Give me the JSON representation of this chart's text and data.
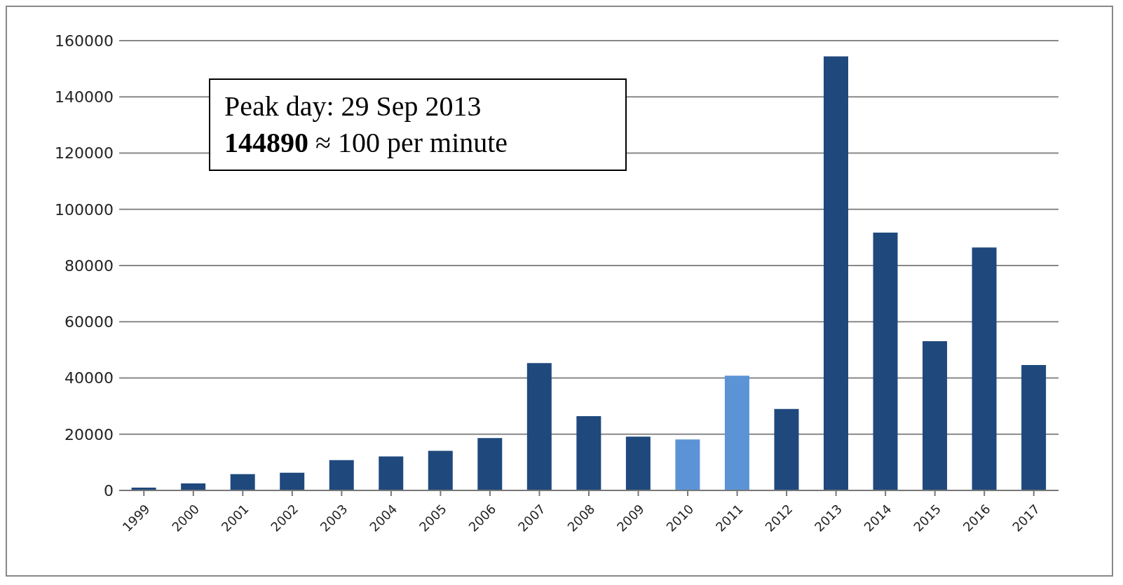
{
  "chart_data": {
    "type": "bar",
    "categories": [
      "1999",
      "2000",
      "2001",
      "2002",
      "2003",
      "2004",
      "2005",
      "2006",
      "2007",
      "2008",
      "2009",
      "2010",
      "2011",
      "2012",
      "2013",
      "2014",
      "2015",
      "2016",
      "2017"
    ],
    "values": [
      1000,
      2500,
      5800,
      6300,
      10800,
      12100,
      14100,
      18600,
      45300,
      26400,
      19100,
      18100,
      40800,
      29000,
      154400,
      91700,
      53100,
      86400,
      44600
    ],
    "colors": [
      "#1f497d",
      "#1f497d",
      "#1f497d",
      "#1f497d",
      "#1f497d",
      "#1f497d",
      "#1f497d",
      "#1f497d",
      "#1f497d",
      "#1f497d",
      "#1f497d",
      "#5b93d6",
      "#5b93d6",
      "#1f497d",
      "#1f497d",
      "#1f497d",
      "#1f497d",
      "#1f497d",
      "#1f497d"
    ],
    "ylim": [
      0,
      160000
    ],
    "yticks": [
      0,
      20000,
      40000,
      60000,
      80000,
      100000,
      120000,
      140000,
      160000
    ],
    "grid": "y",
    "legend": false,
    "annotations": [
      "Peak day: 29 Sep 2013",
      "144890 ≈ 100 per minute"
    ]
  }
}
